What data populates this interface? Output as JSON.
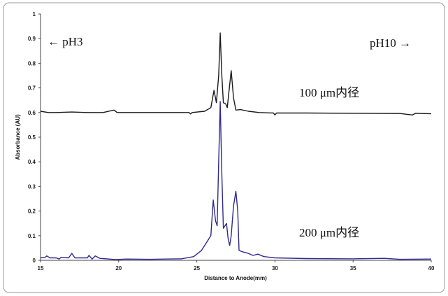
{
  "chart_data": {
    "type": "line",
    "title": "",
    "xlabel": "Distance to Anode(mm)",
    "ylabel": "Absorbance (AU)",
    "xlim": [
      15,
      40
    ],
    "ylim": [
      0,
      1
    ],
    "xticks": [
      "15",
      "20",
      "25",
      "30",
      "35",
      "40"
    ],
    "yticks": [
      "0",
      "0.1",
      "0.2",
      "0.3",
      "0.4",
      "0.5",
      "0.6",
      "0.7",
      "0.8",
      "0.9",
      "1"
    ],
    "grid": false,
    "annotations": {
      "left_arrow": "← pH3",
      "right_arrow": "pH10 →",
      "series1_label": "100 μm内径",
      "series2_label": "200 μm内径"
    },
    "series": [
      {
        "name": "100 μm内径",
        "color": "#1a1a1a",
        "points": [
          [
            15,
            0.605
          ],
          [
            15.5,
            0.6
          ],
          [
            16,
            0.6
          ],
          [
            17,
            0.602
          ],
          [
            18,
            0.6
          ],
          [
            19,
            0.6
          ],
          [
            19.7,
            0.61
          ],
          [
            19.9,
            0.6
          ],
          [
            21,
            0.6
          ],
          [
            23,
            0.6
          ],
          [
            24.5,
            0.6
          ],
          [
            24.6,
            0.594
          ],
          [
            24.7,
            0.6
          ],
          [
            25.5,
            0.605
          ],
          [
            25.9,
            0.62
          ],
          [
            26.1,
            0.69
          ],
          [
            26.25,
            0.64
          ],
          [
            26.4,
            0.75
          ],
          [
            26.5,
            0.923
          ],
          [
            26.6,
            0.75
          ],
          [
            26.7,
            0.64
          ],
          [
            26.85,
            0.635
          ],
          [
            26.95,
            0.62
          ],
          [
            27.05,
            0.68
          ],
          [
            27.2,
            0.77
          ],
          [
            27.35,
            0.66
          ],
          [
            27.5,
            0.61
          ],
          [
            27.8,
            0.612
          ],
          [
            28.3,
            0.605
          ],
          [
            29,
            0.6
          ],
          [
            29.9,
            0.598
          ],
          [
            30,
            0.59
          ],
          [
            30.1,
            0.598
          ],
          [
            32,
            0.598
          ],
          [
            35,
            0.597
          ],
          [
            38,
            0.596
          ],
          [
            38.8,
            0.59
          ],
          [
            39,
            0.597
          ],
          [
            40,
            0.595
          ]
        ]
      },
      {
        "name": "200 μm内径",
        "color": "#2e2a8c",
        "points": [
          [
            15,
            0.01
          ],
          [
            15.3,
            0.012
          ],
          [
            15.4,
            0.018
          ],
          [
            15.6,
            0.01
          ],
          [
            16,
            0.01
          ],
          [
            16.2,
            0.005
          ],
          [
            16.3,
            0.012
          ],
          [
            16.8,
            0.01
          ],
          [
            17,
            0.028
          ],
          [
            17.2,
            0.01
          ],
          [
            18,
            0.01
          ],
          [
            18.1,
            0.02
          ],
          [
            18.3,
            0.005
          ],
          [
            18.5,
            0.018
          ],
          [
            18.8,
            0.008
          ],
          [
            19.4,
            0.005
          ],
          [
            19.8,
            0.003
          ],
          [
            20.5,
            0.005
          ],
          [
            22,
            0.004
          ],
          [
            23,
            0.005
          ],
          [
            24,
            0.006
          ],
          [
            24.8,
            0.015
          ],
          [
            25.3,
            0.04
          ],
          [
            25.6,
            0.07
          ],
          [
            25.9,
            0.1
          ],
          [
            26.05,
            0.245
          ],
          [
            26.2,
            0.16
          ],
          [
            26.3,
            0.14
          ],
          [
            26.4,
            0.4
          ],
          [
            26.5,
            0.645
          ],
          [
            26.6,
            0.35
          ],
          [
            26.7,
            0.13
          ],
          [
            26.8,
            0.14
          ],
          [
            26.9,
            0.15
          ],
          [
            27.0,
            0.09
          ],
          [
            27.1,
            0.06
          ],
          [
            27.2,
            0.1
          ],
          [
            27.35,
            0.22
          ],
          [
            27.5,
            0.28
          ],
          [
            27.62,
            0.2
          ],
          [
            27.7,
            0.04
          ],
          [
            27.9,
            0.035
          ],
          [
            28.2,
            0.03
          ],
          [
            28.6,
            0.02
          ],
          [
            28.9,
            0.025
          ],
          [
            29.3,
            0.015
          ],
          [
            30,
            0.01
          ],
          [
            32,
            0.007
          ],
          [
            35,
            0.006
          ],
          [
            37,
            0.008
          ],
          [
            38,
            0.004
          ],
          [
            40,
            0.005
          ]
        ]
      }
    ]
  }
}
